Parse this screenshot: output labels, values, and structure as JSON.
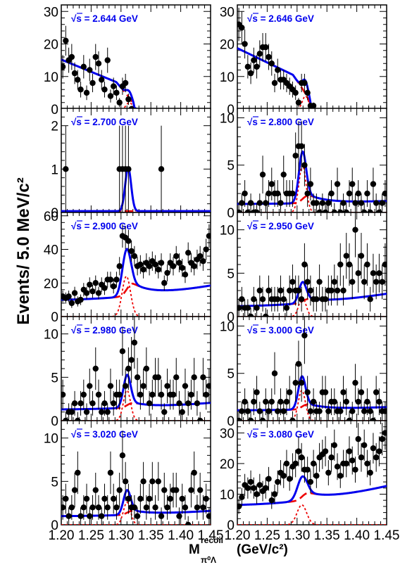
{
  "figure": {
    "ylabel": "Events/ 5.0 MeV/c²",
    "xlabel_main": "M",
    "xlabel_sup": "recoil",
    "xlabel_sub": "π⁰Λ",
    "xlabel_unit": "(GeV/c²)",
    "x_tick_labels_left": [
      "1.20",
      "1.25",
      "1.30",
      "1.35",
      "1.40",
      "1.45"
    ],
    "x_tick_labels_right": [
      "1.20",
      "1.25",
      "1.30",
      "1.35",
      "1.40",
      "1.45"
    ],
    "colors": {
      "data": "#000000",
      "total_fit": "#0000ee",
      "background": "#ee0000",
      "signal": "#ee0000"
    }
  },
  "chart_data": [
    {
      "type": "scatter",
      "label": "√s = 2.644 GeV",
      "xlim": [
        1.2,
        1.45
      ],
      "ylim": [
        0,
        32
      ],
      "yticks": [
        0,
        10,
        20,
        30
      ],
      "x": [
        1.2025,
        1.2075,
        1.2125,
        1.2175,
        1.2225,
        1.2275,
        1.2325,
        1.2375,
        1.2425,
        1.2475,
        1.2525,
        1.2575,
        1.2625,
        1.2675,
        1.2725,
        1.2775,
        1.2825,
        1.2875,
        1.2925,
        1.2975,
        1.3025,
        1.3075,
        1.3125,
        1.3175
      ],
      "y": [
        13,
        21,
        15,
        16,
        11,
        9,
        6,
        13,
        5,
        12,
        8,
        16,
        14,
        9,
        6,
        15,
        4,
        7,
        5,
        2,
        7,
        8,
        3,
        0
      ],
      "fit": {
        "kind": "threshold",
        "a": 15.2,
        "b": -75,
        "xt": 1.322,
        "sig_amp": 2.0,
        "sig_mu": 1.314,
        "sig_sigma": 0.005,
        "bkg_scale": 0.16
      }
    },
    {
      "type": "scatter",
      "label": "√s = 2.646 GeV",
      "xlim": [
        1.2,
        1.45
      ],
      "ylim": [
        0,
        32
      ],
      "yticks": [
        0,
        10,
        20,
        30
      ],
      "x": [
        1.2025,
        1.2075,
        1.2125,
        1.2175,
        1.2225,
        1.2275,
        1.2325,
        1.2375,
        1.2425,
        1.2475,
        1.2525,
        1.2575,
        1.2625,
        1.2675,
        1.2725,
        1.2775,
        1.2825,
        1.2875,
        1.2925,
        1.2975,
        1.3025,
        1.3075,
        1.3125,
        1.3175,
        1.3225,
        1.3275
      ],
      "y": [
        26,
        25,
        20,
        13,
        11,
        15,
        13,
        17,
        19,
        19,
        16,
        14,
        8,
        12,
        9,
        9,
        8,
        7,
        6,
        5,
        2,
        8,
        8,
        5,
        1,
        1
      ],
      "fit": {
        "kind": "threshold",
        "a": 18.7,
        "b": -88,
        "xt": 1.323,
        "sig_amp": 4.0,
        "sig_mu": 1.314,
        "sig_sigma": 0.005,
        "bkg_scale": 0.32
      }
    },
    {
      "type": "scatter",
      "label": "√s = 2.700 GeV",
      "xlim": [
        1.2,
        1.45
      ],
      "ylim": [
        0,
        2.4
      ],
      "yticks": [
        0,
        1,
        2
      ],
      "x": [
        1.2075,
        1.2975,
        1.3025,
        1.3075,
        1.3125,
        1.3675
      ],
      "y": [
        1,
        1,
        1,
        1,
        1,
        1
      ],
      "fit": {
        "kind": "peak",
        "b0": 0.03,
        "b1": 0.0,
        "sig_amp": 1.0,
        "sig_mu": 1.312,
        "sig_sigma": 0.005
      }
    },
    {
      "type": "scatter",
      "label": "√s = 2.800 GeV",
      "xlim": [
        1.2,
        1.45
      ],
      "ylim": [
        0,
        11
      ],
      "yticks": [
        0,
        5,
        10
      ],
      "x": [
        1.2025,
        1.2075,
        1.2125,
        1.2175,
        1.2225,
        1.2275,
        1.2325,
        1.2375,
        1.2425,
        1.2475,
        1.2525,
        1.2575,
        1.2625,
        1.2675,
        1.2725,
        1.2775,
        1.2825,
        1.2875,
        1.2925,
        1.2975,
        1.3025,
        1.3075,
        1.3125,
        1.3175,
        1.3225,
        1.3275,
        1.3325,
        1.3375,
        1.3425,
        1.3475,
        1.3525,
        1.3575,
        1.3625,
        1.3675,
        1.3725,
        1.3775,
        1.3825,
        1.3875,
        1.3925,
        1.3975,
        1.4025,
        1.4075,
        1.4125,
        1.4175,
        1.4225,
        1.4275,
        1.4325,
        1.4375,
        1.4425,
        1.4475
      ],
      "y": [
        0,
        1,
        2,
        0,
        1,
        0,
        0,
        1,
        4,
        1,
        2,
        3,
        2,
        2,
        1,
        4,
        2,
        2,
        2,
        6,
        7,
        7,
        5,
        2,
        3,
        1,
        1,
        0,
        1,
        0,
        1,
        2,
        0,
        3,
        0,
        1,
        0,
        2,
        3,
        1,
        2,
        1,
        0,
        2,
        0,
        3,
        1,
        0,
        1,
        2
      ],
      "fit": {
        "kind": "peak",
        "b0": 0.9,
        "b1": 4,
        "sig_amp": 5.0,
        "sig_mu": 1.309,
        "sig_sigma": 0.006,
        "bkg_dash": true,
        "bkg_shoulder": 0.9
      }
    },
    {
      "type": "scatter",
      "label": "√s = 2.900 GeV",
      "xlim": [
        1.2,
        1.45
      ],
      "ylim": [
        0,
        62
      ],
      "yticks": [
        0,
        20,
        40,
        60
      ],
      "x": [
        1.2025,
        1.2075,
        1.2125,
        1.2175,
        1.2225,
        1.2275,
        1.2325,
        1.2375,
        1.2425,
        1.2475,
        1.2525,
        1.2575,
        1.2625,
        1.2675,
        1.2725,
        1.2775,
        1.2825,
        1.2875,
        1.2925,
        1.2975,
        1.3025,
        1.3075,
        1.3125,
        1.3175,
        1.3225,
        1.3275,
        1.3325,
        1.3375,
        1.3425,
        1.3475,
        1.3525,
        1.3575,
        1.3625,
        1.3675,
        1.3725,
        1.3775,
        1.3825,
        1.3875,
        1.3925,
        1.3975,
        1.4025,
        1.4075,
        1.4125,
        1.4175,
        1.4225,
        1.4275,
        1.4325,
        1.4375,
        1.4425,
        1.4475
      ],
      "y": [
        12,
        11,
        12,
        8,
        14,
        9,
        10,
        16,
        14,
        19,
        15,
        20,
        14,
        19,
        17,
        22,
        22,
        18,
        22,
        30,
        48,
        47,
        45,
        39,
        36,
        30,
        31,
        28,
        32,
        30,
        33,
        31,
        28,
        32,
        20,
        26,
        32,
        30,
        36,
        32,
        29,
        25,
        38,
        32,
        30,
        34,
        36,
        33,
        40,
        48
      ],
      "fit": {
        "kind": "peak",
        "b0": 10,
        "b1": 112,
        "sig_amp": 24,
        "sig_mu": 1.309,
        "sig_sigma": 0.007,
        "bkg_dash": true,
        "bkg_shoulder": 8
      }
    },
    {
      "type": "scatter",
      "label": "√s = 2.950 GeV",
      "xlim": [
        1.2,
        1.45
      ],
      "ylim": [
        0,
        12
      ],
      "yticks": [
        0,
        5,
        10
      ],
      "x": [
        1.2025,
        1.2075,
        1.2125,
        1.2175,
        1.2225,
        1.2275,
        1.2325,
        1.2375,
        1.2425,
        1.2475,
        1.2525,
        1.2575,
        1.2625,
        1.2675,
        1.2725,
        1.2775,
        1.2825,
        1.2875,
        1.2925,
        1.2975,
        1.3025,
        1.3075,
        1.3125,
        1.3175,
        1.3225,
        1.3275,
        1.3325,
        1.3375,
        1.3425,
        1.3475,
        1.3525,
        1.3575,
        1.3625,
        1.3675,
        1.3725,
        1.3775,
        1.3825,
        1.3875,
        1.3925,
        1.3975,
        1.4025,
        1.4075,
        1.4125,
        1.4175,
        1.4225,
        1.4275,
        1.4325,
        1.4375,
        1.4425,
        1.4475
      ],
      "y": [
        1,
        2,
        1,
        1,
        0,
        2,
        1,
        3,
        2,
        0,
        3,
        2,
        2,
        2,
        3,
        2,
        1,
        3,
        4,
        3,
        3,
        2,
        6,
        4,
        3,
        2,
        2,
        4,
        2,
        2,
        3,
        3,
        4,
        3,
        6,
        3,
        7,
        6,
        4,
        10,
        5,
        7,
        4,
        6,
        2,
        5,
        4,
        5,
        4,
        6
      ],
      "fit": {
        "kind": "peak",
        "b0": 1.2,
        "b1": 19,
        "sig_amp": 2.2,
        "sig_mu": 1.309,
        "sig_sigma": 0.006,
        "bkg_dash": true,
        "bkg_shoulder": 0.5
      }
    },
    {
      "type": "scatter",
      "label": "√s = 2.980 GeV",
      "xlim": [
        1.2,
        1.45
      ],
      "ylim": [
        0,
        12
      ],
      "yticks": [
        0,
        5,
        10
      ],
      "x": [
        1.2025,
        1.2075,
        1.2125,
        1.2175,
        1.2225,
        1.2275,
        1.2325,
        1.2375,
        1.2425,
        1.2475,
        1.2525,
        1.2575,
        1.2625,
        1.2675,
        1.2725,
        1.2775,
        1.2825,
        1.2875,
        1.2925,
        1.2975,
        1.3025,
        1.3075,
        1.3125,
        1.3175,
        1.3225,
        1.3275,
        1.3325,
        1.3375,
        1.3425,
        1.3475,
        1.3525,
        1.3575,
        1.3625,
        1.3675,
        1.3725,
        1.3775,
        1.3825,
        1.3875,
        1.3925,
        1.3975,
        1.4025,
        1.4075,
        1.4125,
        1.4175,
        1.4225,
        1.4275,
        1.4325,
        1.4375,
        1.4425,
        1.4475
      ],
      "y": [
        3,
        0,
        1,
        1,
        2,
        0,
        2,
        3,
        1,
        4,
        2,
        6,
        3,
        1,
        2,
        1,
        4,
        2,
        3,
        3,
        8,
        4,
        6,
        7,
        9,
        5,
        3,
        4,
        6,
        2,
        3,
        5,
        5,
        3,
        1,
        4,
        3,
        3,
        5,
        2,
        1,
        4,
        2,
        3,
        5,
        2,
        0,
        5,
        3,
        4
      ],
      "fit": {
        "kind": "peak",
        "b0": 1.3,
        "b1": 10,
        "sig_amp": 3.5,
        "sig_mu": 1.31,
        "sig_sigma": 0.006,
        "bkg_dash": true,
        "bkg_shoulder": 0.6
      }
    },
    {
      "type": "scatter",
      "label": "√s = 3.000 GeV",
      "xlim": [
        1.2,
        1.45
      ],
      "ylim": [
        0,
        11
      ],
      "yticks": [
        0,
        5,
        10
      ],
      "x": [
        1.2025,
        1.2075,
        1.2125,
        1.2175,
        1.2225,
        1.2275,
        1.2325,
        1.2375,
        1.2425,
        1.2475,
        1.2525,
        1.2575,
        1.2625,
        1.2675,
        1.2725,
        1.2775,
        1.2825,
        1.2875,
        1.2925,
        1.2975,
        1.3025,
        1.3075,
        1.3125,
        1.3175,
        1.3225,
        1.3275,
        1.3325,
        1.3375,
        1.3425,
        1.3475,
        1.3525,
        1.3575,
        1.3625,
        1.3675,
        1.3725,
        1.3775,
        1.3825,
        1.3875,
        1.3925,
        1.3975,
        1.4025,
        1.4075,
        1.4125,
        1.4175,
        1.4225,
        1.4275,
        1.4325,
        1.4375,
        1.4425,
        1.4475
      ],
      "y": [
        0,
        1,
        2,
        1,
        0,
        2,
        3,
        1,
        0,
        2,
        1,
        2,
        5,
        1,
        2,
        1,
        2,
        3,
        0,
        4,
        6,
        4,
        9,
        3,
        1,
        2,
        1,
        1,
        3,
        3,
        1,
        2,
        2,
        1,
        1,
        3,
        2,
        0,
        1,
        4,
        2,
        3,
        1,
        2,
        1,
        0,
        3,
        2,
        1,
        1
      ],
      "fit": {
        "kind": "peak",
        "b0": 1.1,
        "b1": 4.4,
        "sig_amp": 3.2,
        "sig_mu": 1.308,
        "sig_sigma": 0.006,
        "bkg_dash": true,
        "bkg_shoulder": 0.6
      }
    },
    {
      "type": "scatter",
      "label": "√s = 3.020 GeV",
      "xlim": [
        1.2,
        1.45
      ],
      "ylim": [
        0,
        12
      ],
      "yticks": [
        0,
        5,
        10
      ],
      "x": [
        1.2025,
        1.2075,
        1.2125,
        1.2175,
        1.2225,
        1.2275,
        1.2325,
        1.2375,
        1.2425,
        1.2475,
        1.2525,
        1.2575,
        1.2625,
        1.2675,
        1.2725,
        1.2775,
        1.2825,
        1.2875,
        1.2925,
        1.2975,
        1.3025,
        1.3075,
        1.3125,
        1.3175,
        1.3225,
        1.3275,
        1.3325,
        1.3375,
        1.3425,
        1.3475,
        1.3525,
        1.3575,
        1.3625,
        1.3675,
        1.3725,
        1.3775,
        1.3825,
        1.3875,
        1.3925,
        1.3975,
        1.4025,
        1.4075,
        1.4125,
        1.4175,
        1.4225,
        1.4275,
        1.4325,
        1.4375,
        1.4425,
        1.4475
      ],
      "y": [
        2,
        3,
        1,
        2,
        4,
        6,
        1,
        2,
        3,
        1,
        2,
        4,
        2,
        1,
        3,
        2,
        6,
        3,
        2,
        4,
        8,
        5,
        3,
        2,
        2,
        1,
        3,
        5,
        2,
        3,
        5,
        2,
        5,
        1,
        4,
        2,
        3,
        4,
        4,
        1,
        3,
        2,
        0,
        4,
        6,
        2,
        4,
        2,
        3,
        1
      ],
      "fit": {
        "kind": "peak",
        "b0": 1.0,
        "b1": 8,
        "sig_amp": 2.6,
        "sig_mu": 1.31,
        "sig_sigma": 0.006,
        "bkg_dash": true,
        "bkg_shoulder": 0.5
      }
    },
    {
      "type": "scatter",
      "label": "√s = 3.080 GeV",
      "xlim": [
        1.2,
        1.45
      ],
      "ylim": [
        0,
        34
      ],
      "yticks": [
        0,
        10,
        20,
        30
      ],
      "x": [
        1.2025,
        1.2075,
        1.2125,
        1.2175,
        1.2225,
        1.2275,
        1.2325,
        1.2375,
        1.2425,
        1.2475,
        1.2525,
        1.2575,
        1.2625,
        1.2675,
        1.2725,
        1.2775,
        1.2825,
        1.2875,
        1.2925,
        1.2975,
        1.3025,
        1.3075,
        1.3125,
        1.3175,
        1.3225,
        1.3275,
        1.3325,
        1.3375,
        1.3425,
        1.3475,
        1.3525,
        1.3575,
        1.3625,
        1.3675,
        1.3725,
        1.3775,
        1.3825,
        1.3875,
        1.3925,
        1.3975,
        1.4025,
        1.4075,
        1.4125,
        1.4175,
        1.4225,
        1.4275,
        1.4325,
        1.4375,
        1.4425,
        1.4475
      ],
      "y": [
        6,
        9,
        13,
        12,
        14,
        12,
        10,
        13,
        11,
        12,
        15,
        8,
        10,
        14,
        17,
        16,
        20,
        15,
        19,
        20,
        24,
        22,
        18,
        18,
        14,
        20,
        16,
        22,
        23,
        24,
        17,
        22,
        26,
        19,
        16,
        20,
        20,
        24,
        21,
        18,
        28,
        22,
        26,
        20,
        17,
        25,
        22,
        24,
        28,
        30
      ],
      "fit": {
        "kind": "peak",
        "b0": 6.5,
        "b1": 82,
        "sig_amp": 6.5,
        "sig_mu": 1.308,
        "sig_sigma": 0.008,
        "bkg_dash": true,
        "bkg_shoulder": 2.5
      }
    }
  ]
}
